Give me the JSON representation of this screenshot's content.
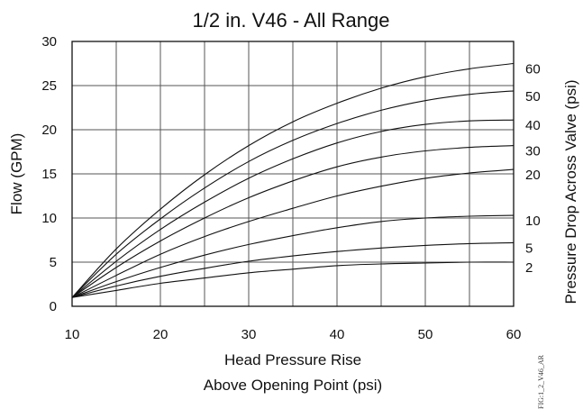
{
  "chart_data": {
    "type": "line",
    "title": "1/2 in. V46 - All Range",
    "xlabel_line1": "Head Pressure Rise",
    "xlabel_line2": "Above Opening Point (psi)",
    "ylabel": "Flow (GPM)",
    "y2label": "Pressure Drop Across Valve (psi)",
    "figure_id": "FIG:1_2_V46_AR",
    "xlim": [
      10,
      60
    ],
    "ylim": [
      0,
      30
    ],
    "x_ticks": [
      10,
      20,
      30,
      40,
      50,
      60
    ],
    "y_ticks": [
      0,
      5,
      10,
      15,
      20,
      25,
      30
    ],
    "x_grid_step": 5,
    "y_grid_step": 5,
    "grid": true,
    "x": [
      10,
      15,
      20,
      25,
      30,
      35,
      40,
      45,
      50,
      55,
      60
    ],
    "series": [
      {
        "name": "60",
        "values": [
          1.0,
          6.5,
          11.0,
          14.9,
          18.2,
          20.9,
          23.0,
          24.7,
          26.0,
          26.9,
          27.5
        ]
      },
      {
        "name": "50",
        "values": [
          1.0,
          5.9,
          9.9,
          13.4,
          16.4,
          18.8,
          20.7,
          22.2,
          23.3,
          24.0,
          24.4
        ]
      },
      {
        "name": "40",
        "values": [
          1.0,
          5.1,
          8.7,
          11.8,
          14.5,
          16.7,
          18.5,
          19.8,
          20.6,
          21.0,
          21.1
        ]
      },
      {
        "name": "30",
        "values": [
          1.0,
          4.4,
          7.4,
          10.0,
          12.3,
          14.2,
          15.8,
          16.9,
          17.6,
          18.0,
          18.2
        ]
      },
      {
        "name": "20",
        "values": [
          1.0,
          3.5,
          5.9,
          7.9,
          9.6,
          11.1,
          12.5,
          13.6,
          14.5,
          15.1,
          15.5
        ]
      },
      {
        "name": "10",
        "values": [
          1.0,
          2.8,
          4.4,
          5.8,
          7.0,
          8.0,
          8.9,
          9.6,
          10.0,
          10.2,
          10.3
        ]
      },
      {
        "name": "5",
        "values": [
          1.0,
          2.3,
          3.4,
          4.3,
          5.1,
          5.7,
          6.2,
          6.6,
          6.9,
          7.1,
          7.2
        ]
      },
      {
        "name": "2",
        "values": [
          1.0,
          1.8,
          2.6,
          3.2,
          3.8,
          4.2,
          4.6,
          4.8,
          4.9,
          5.0,
          5.0
        ]
      }
    ]
  }
}
